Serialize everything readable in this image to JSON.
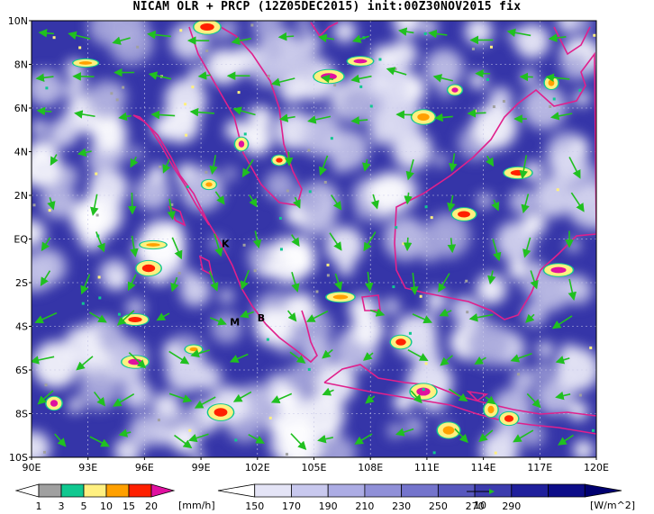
{
  "title": "NICAM OLR + PRCP (12Z05DEC2015) init:00Z30NOV2015 fix",
  "lat_labels": [
    "10N",
    "8N",
    "6N",
    "4N",
    "2N",
    "EQ",
    "2S",
    "4S",
    "6S",
    "8S",
    "10S"
  ],
  "lon_labels": [
    "90E",
    "93E",
    "96E",
    "99E",
    "102E",
    "105E",
    "108E",
    "111E",
    "114E",
    "117E",
    "120E"
  ],
  "markers": [
    {
      "label": "K",
      "lon": 100.3,
      "lat": -0.2
    },
    {
      "label": "B",
      "lon": 102.2,
      "lat": -3.6
    },
    {
      "label": "M",
      "lon": 100.8,
      "lat": -3.8
    }
  ],
  "precip_bar": {
    "ticks": [
      "1",
      "3",
      "5",
      "10",
      "15",
      "20"
    ],
    "unit": "[mm/h]",
    "colors": [
      "#ffffff",
      "#a0a0a0",
      "#10c890",
      "#fff080",
      "#ffa000",
      "#ff2000",
      "#e010a0"
    ]
  },
  "olr_bar": {
    "ticks": [
      "150",
      "170",
      "190",
      "210",
      "230",
      "250",
      "270",
      "290"
    ],
    "unit": "[W/m^2]",
    "colors": [
      "#ffffff",
      "#e4e4f6",
      "#c8c8ee",
      "#acace4",
      "#9090d8",
      "#7474cc",
      "#5858be",
      "#3c3cae",
      "#20209c",
      "#0c0c88",
      "#000070"
    ],
    "vector_ref": "10"
  },
  "colors": {
    "coast": "#e0208c",
    "wind": "#20c020",
    "land": "#3030a0"
  }
}
